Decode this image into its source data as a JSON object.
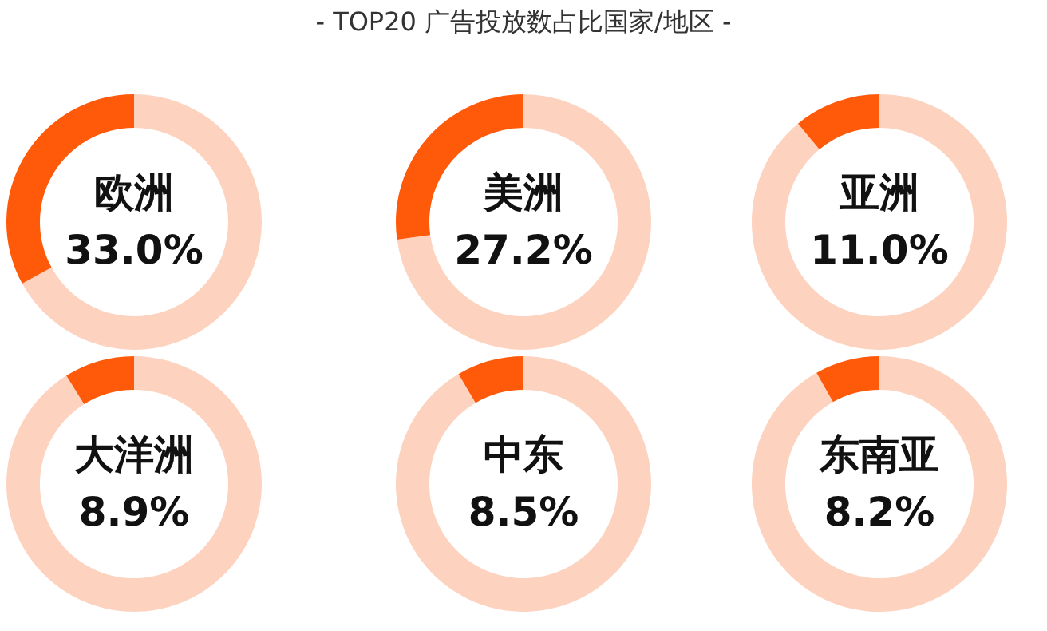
{
  "chart_data": [
    {
      "type": "other",
      "title": "- TOP20 广告投放数占比国家/地区 -"
    },
    {
      "type": "donut",
      "categories": [
        null,
        "欧洲"
      ],
      "values": [
        67.0,
        33.0
      ],
      "colors": [
        "#fdd3c0",
        "#ff5a0a"
      ],
      "value_labels": [
        null,
        "33.0%"
      ]
    },
    {
      "type": "donut",
      "categories": [
        null,
        "美洲"
      ],
      "values": [
        72.8,
        27.2
      ],
      "colors": [
        "#fdd3c0",
        "#ff5a0a"
      ],
      "value_labels": [
        null,
        "27.2%"
      ]
    },
    {
      "type": "donut",
      "categories": [
        null,
        "亚洲"
      ],
      "values": [
        89.0,
        11.0
      ],
      "colors": [
        "#fdd3c0",
        "#ff5a0a"
      ],
      "value_labels": [
        null,
        "11.0%"
      ]
    },
    {
      "type": "donut",
      "categories": [
        null,
        "大洋洲"
      ],
      "values": [
        91.1,
        8.9
      ],
      "colors": [
        "#fdd3c0",
        "#ff5a0a"
      ],
      "value_labels": [
        null,
        "8.9%"
      ]
    },
    {
      "type": "donut",
      "categories": [
        null,
        "中东"
      ],
      "values": [
        91.5,
        8.5
      ],
      "colors": [
        "#fdd3c0",
        "#ff5a0a"
      ],
      "value_labels": [
        null,
        "8.5%"
      ]
    },
    {
      "type": "donut",
      "categories": [
        null,
        "东南亚"
      ],
      "values": [
        91.8,
        8.2
      ],
      "colors": [
        "#fdd3c0",
        "#ff5a0a"
      ],
      "value_labels": [
        null,
        "8.2%"
      ]
    }
  ]
}
